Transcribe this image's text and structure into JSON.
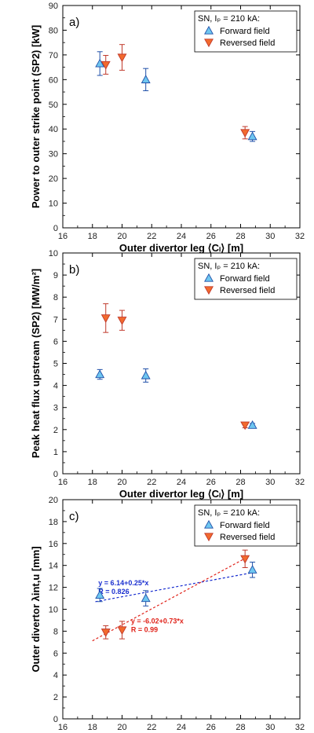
{
  "colors": {
    "forward_fill": "#6EC6F0",
    "forward_stroke": "#1F4FA8",
    "forward_text": "#1A3ED6",
    "reversed_fill": "#F26A2E",
    "reversed_stroke": "#C0392B",
    "reversed_text": "#D9231A",
    "fit_forward": "#1A2FD0",
    "fit_reversed": "#E0231A"
  },
  "chart_data": [
    {
      "type": "scatter",
      "panel_label": "a)",
      "xlabel": "Outer divertor leg ⟨Cₗ⟩ [m]",
      "ylabel": "Power to outer strike point (SP2) [kW]",
      "xlim": [
        16,
        32
      ],
      "ylim": [
        0,
        90
      ],
      "xticks": [
        16,
        18,
        20,
        22,
        24,
        26,
        28,
        30,
        32
      ],
      "yticks": [
        0,
        10,
        20,
        30,
        40,
        50,
        60,
        70,
        80,
        90
      ],
      "legend": {
        "title": "SN, Iₚ = 210 kA:",
        "position": "top-right",
        "entries": [
          "Forward field",
          "Reversed field"
        ]
      },
      "series": [
        {
          "name": "Forward field",
          "marker": "triangle-up",
          "x": [
            18.5,
            21.6,
            28.8
          ],
          "y": [
            66.5,
            60.0,
            37.0
          ],
          "err": [
            4.8,
            4.5,
            2.0
          ]
        },
        {
          "name": "Reversed field",
          "marker": "triangle-down",
          "x": [
            18.9,
            20.0,
            28.3
          ],
          "y": [
            66.0,
            69.0,
            38.5
          ],
          "err": [
            3.8,
            5.2,
            2.5
          ]
        }
      ]
    },
    {
      "type": "scatter",
      "panel_label": "b)",
      "xlabel": "Outer divertor leg ⟨Cₗ⟩ [m]",
      "ylabel": "Peak heat flux upstream (SP2) [MW/m²]",
      "xlim": [
        16,
        32
      ],
      "ylim": [
        0,
        10
      ],
      "xticks": [
        16,
        18,
        20,
        22,
        24,
        26,
        28,
        30,
        32
      ],
      "yticks": [
        0,
        1,
        2,
        3,
        4,
        5,
        6,
        7,
        8,
        9,
        10
      ],
      "legend": {
        "title": "SN, Iₚ = 210 kA:",
        "position": "top-right",
        "entries": [
          "Forward field",
          "Reversed field"
        ]
      },
      "series": [
        {
          "name": "Forward field",
          "marker": "triangle-up",
          "x": [
            18.5,
            21.6,
            28.8
          ],
          "y": [
            4.5,
            4.45,
            2.2
          ],
          "err": [
            0.22,
            0.3,
            0.08
          ]
        },
        {
          "name": "Reversed field",
          "marker": "triangle-down",
          "x": [
            18.9,
            20.0,
            28.3
          ],
          "y": [
            7.05,
            6.95,
            2.2
          ],
          "err": [
            0.65,
            0.45,
            0.12
          ]
        }
      ]
    },
    {
      "type": "scatter",
      "panel_label": "c)",
      "xlabel": "Outer divertor leg ⟨Cₗ⟩ [m]",
      "ylabel": "Outer divertor λint,u [mm]",
      "xlim": [
        16,
        32
      ],
      "ylim": [
        0,
        20
      ],
      "xticks": [
        16,
        18,
        20,
        22,
        24,
        26,
        28,
        30,
        32
      ],
      "yticks": [
        0,
        2,
        4,
        6,
        8,
        10,
        12,
        14,
        16,
        18,
        20
      ],
      "legend": {
        "title": "SN, Iₚ = 210 kA:",
        "position": "top-right",
        "entries": [
          "Forward field",
          "Reversed field"
        ]
      },
      "series": [
        {
          "name": "Forward field",
          "marker": "triangle-up",
          "x": [
            18.5,
            21.6,
            28.8
          ],
          "y": [
            11.3,
            11.0,
            13.6
          ],
          "err": [
            0.6,
            0.7,
            0.7
          ]
        },
        {
          "name": "Reversed field",
          "marker": "triangle-down",
          "x": [
            18.9,
            20.0,
            28.3
          ],
          "y": [
            7.9,
            8.1,
            14.6
          ],
          "err": [
            0.6,
            0.8,
            0.8
          ]
        }
      ],
      "fits": [
        {
          "series": "Forward field",
          "intercept": 6.14,
          "slope": 0.25,
          "x_range": [
            18.2,
            28.9
          ],
          "equation": "y = 6.14+0.25*x",
          "r_label": "R = 0.826",
          "label_at": [
            18.4,
            12.2
          ]
        },
        {
          "series": "Reversed field",
          "intercept": -6.02,
          "slope": 0.73,
          "x_range": [
            18.0,
            28.5
          ],
          "equation": "y = -6.02+0.73*x",
          "r_label": "R = 0.99",
          "label_at": [
            20.6,
            8.7
          ]
        }
      ]
    }
  ]
}
